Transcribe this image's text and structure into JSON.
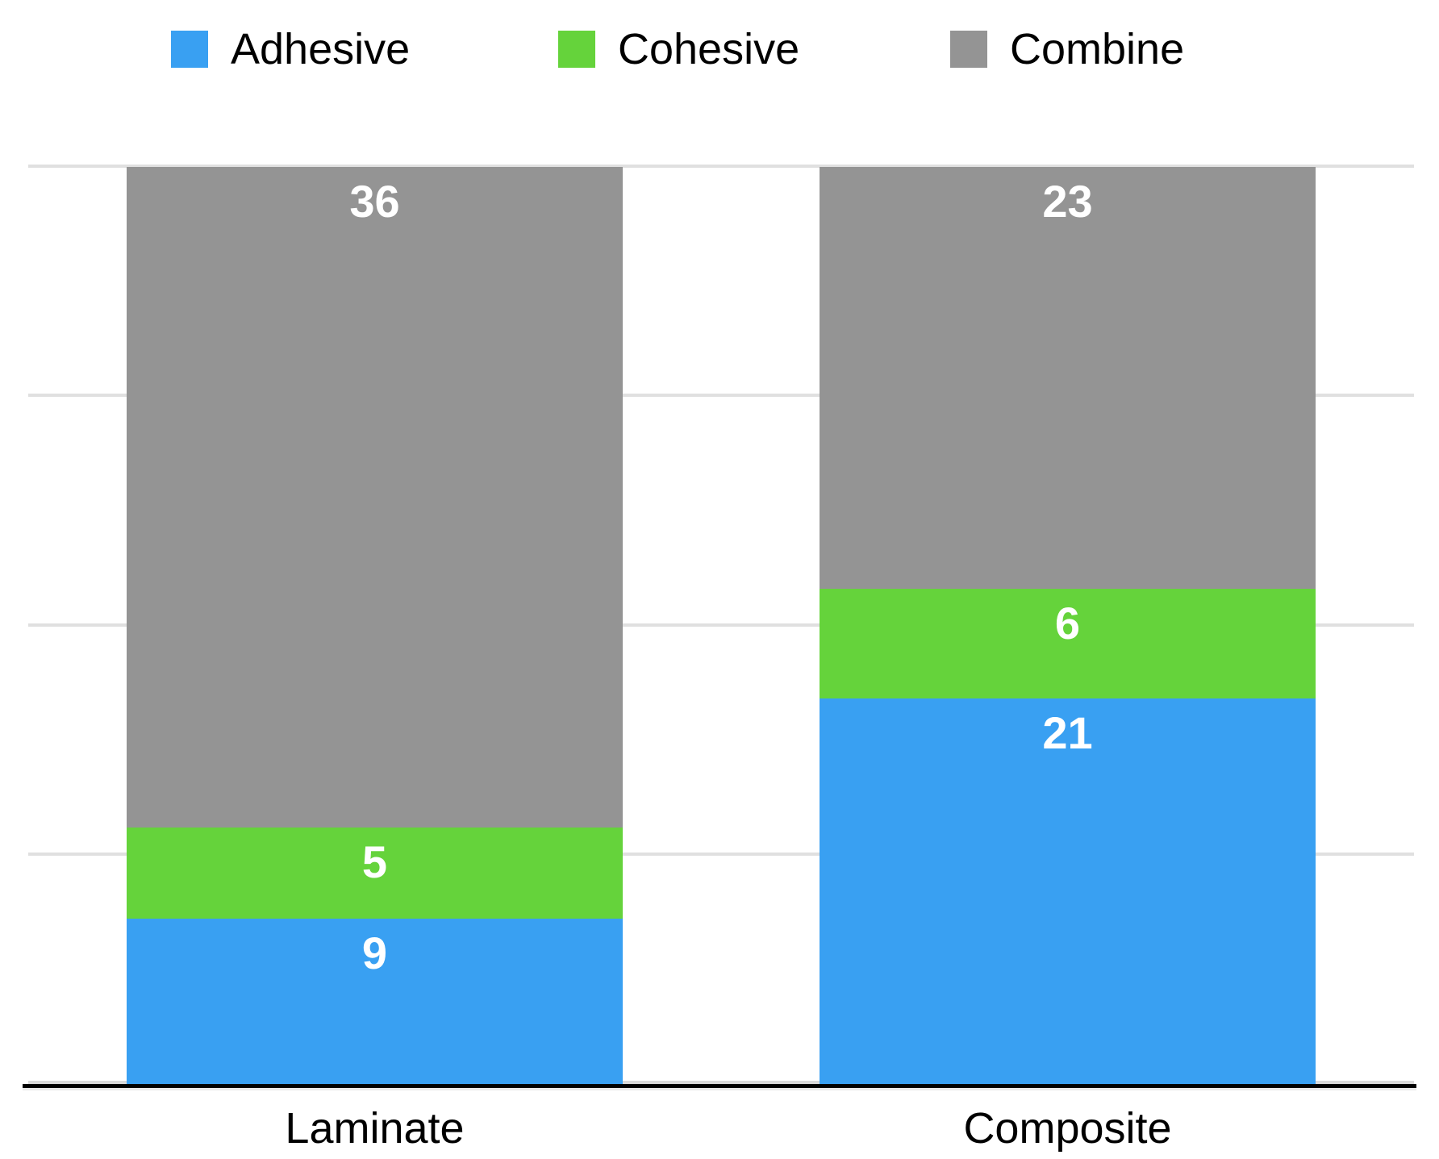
{
  "chart_data": {
    "type": "bar",
    "stacked": true,
    "title": "",
    "categories": [
      "Laminate",
      "Composite"
    ],
    "series": [
      {
        "name": "Adhesive",
        "color": "#39A0F2",
        "values": [
          9,
          21
        ]
      },
      {
        "name": "Cohesive",
        "color": "#65D33B",
        "values": [
          5,
          6
        ]
      },
      {
        "name": "Combine",
        "color": "#949494",
        "values": [
          36,
          23
        ]
      }
    ],
    "stack_totals": [
      50,
      50
    ],
    "ylim": [
      0,
      50
    ],
    "y_axis_labels_visible": false,
    "gridline_count": 5,
    "grid": "horizontal only",
    "legend_position": "top",
    "value_labels": "inside top of each segment",
    "value_label_color": "#FFFFFF"
  },
  "legend": {
    "items": [
      {
        "label": "Adhesive",
        "color": "#39A0F2"
      },
      {
        "label": "Cohesive",
        "color": "#65D33B"
      },
      {
        "label": "Combine",
        "color": "#949494"
      }
    ]
  },
  "colors": {
    "background": "#FFFFFF",
    "gridline": "#E0E0E0",
    "axis": "#000000",
    "text": "#000000"
  }
}
